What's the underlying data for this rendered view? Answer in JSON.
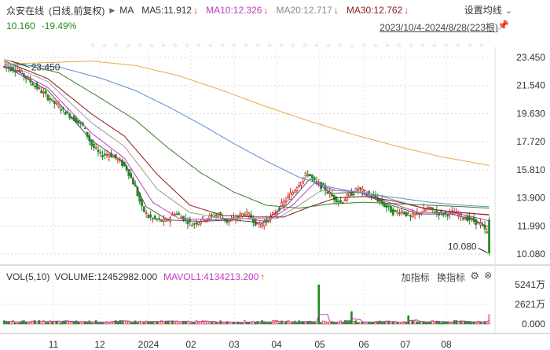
{
  "header": {
    "stock_name": "众安在线",
    "mode": "(日线,前复权)",
    "indicator": "MA",
    "ma5": "MA5:11.912",
    "ma10": "MA10:12.326",
    "ma20": "MA20:12.717",
    "ma30": "MA30:12.762",
    "settings_label": "设置均线",
    "last_price": "10.160",
    "change_pct": "-19.49%",
    "date_range": "2023/10/4-2024/8/28(223根)"
  },
  "volume_panel": {
    "vol_label": "VOL(5,10)",
    "volume_value": "VOLUME:12452982.000",
    "mavol": "MAVOL1:4134213.200",
    "add_indicator": "加指标",
    "switch_indicator": "换指标",
    "y_ticks": [
      "5241万",
      "2621万",
      "0.000"
    ]
  },
  "colors": {
    "up": "#d43030",
    "down": "#1f8a1f",
    "ma5": "#555555",
    "ma10": "#c23ac2",
    "ma20": "#9a9a9a",
    "ma30": "#8b1a1a",
    "ma60": "#3a7a2a",
    "ma120": "#5b8fd0",
    "ma250": "#f0a640"
  },
  "chart_data": {
    "type": "candlestick",
    "y_ticks": [
      "23.450",
      "21.540",
      "19.630",
      "17.720",
      "15.810",
      "13.900",
      "11.990",
      "10.080"
    ],
    "ylim": [
      10.08,
      23.45
    ],
    "x_ticks": [
      "11",
      "12",
      "2024",
      "02",
      "03",
      "04",
      "05",
      "06",
      "07",
      "08"
    ],
    "high_annotation": "23.450",
    "low_annotation": "10.080",
    "grid": true,
    "price_path": [
      [
        0,
        22.8
      ],
      [
        6,
        22.6
      ],
      [
        12,
        21.8
      ],
      [
        18,
        21.0
      ],
      [
        24,
        20.2
      ],
      [
        30,
        19.5
      ],
      [
        36,
        18.8
      ],
      [
        40,
        17.5
      ],
      [
        44,
        16.8
      ],
      [
        48,
        16.9
      ],
      [
        52,
        16.5
      ],
      [
        56,
        15.9
      ],
      [
        60,
        14.6
      ],
      [
        63,
        13.2
      ],
      [
        66,
        12.6
      ],
      [
        70,
        12.4
      ],
      [
        74,
        12.3
      ],
      [
        78,
        12.9
      ],
      [
        82,
        12.5
      ],
      [
        86,
        12.1
      ],
      [
        90,
        12.4
      ],
      [
        94,
        12.6
      ],
      [
        98,
        12.8
      ],
      [
        102,
        12.3
      ],
      [
        106,
        12.5
      ],
      [
        110,
        12.9
      ],
      [
        113,
        12.6
      ],
      [
        116,
        12.0
      ],
      [
        120,
        12.3
      ],
      [
        124,
        12.9
      ],
      [
        128,
        13.6
      ],
      [
        132,
        14.3
      ],
      [
        136,
        15.1
      ],
      [
        139,
        15.6
      ],
      [
        142,
        15.0
      ],
      [
        146,
        14.6
      ],
      [
        150,
        14.0
      ],
      [
        154,
        13.6
      ],
      [
        158,
        14.1
      ],
      [
        162,
        14.5
      ],
      [
        166,
        14.2
      ],
      [
        170,
        13.9
      ],
      [
        174,
        13.4
      ],
      [
        178,
        12.9
      ],
      [
        182,
        13.0
      ],
      [
        186,
        12.6
      ],
      [
        190,
        12.9
      ],
      [
        194,
        13.2
      ],
      [
        198,
        12.9
      ],
      [
        202,
        12.8
      ],
      [
        206,
        12.9
      ],
      [
        210,
        12.6
      ],
      [
        214,
        12.4
      ],
      [
        218,
        12.1
      ],
      [
        221,
        11.5
      ],
      [
        222,
        10.16
      ]
    ],
    "series": [
      {
        "name": "MA5",
        "values": [
          [
            0,
            22.9
          ],
          [
            20,
            21.2
          ],
          [
            40,
            17.8
          ],
          [
            55,
            16.3
          ],
          [
            65,
            13.3
          ],
          [
            75,
            12.4
          ],
          [
            90,
            12.3
          ],
          [
            105,
            12.4
          ],
          [
            118,
            12.2
          ],
          [
            130,
            13.5
          ],
          [
            140,
            15.2
          ],
          [
            150,
            14.2
          ],
          [
            162,
            14.3
          ],
          [
            175,
            13.5
          ],
          [
            190,
            12.8
          ],
          [
            205,
            12.8
          ],
          [
            215,
            12.4
          ],
          [
            222,
            11.91
          ]
        ]
      },
      {
        "name": "MA10",
        "values": [
          [
            0,
            23.0
          ],
          [
            20,
            21.4
          ],
          [
            40,
            18.3
          ],
          [
            55,
            16.6
          ],
          [
            68,
            13.6
          ],
          [
            80,
            12.5
          ],
          [
            95,
            12.4
          ],
          [
            110,
            12.5
          ],
          [
            120,
            12.3
          ],
          [
            132,
            13.4
          ],
          [
            142,
            14.9
          ],
          [
            152,
            14.4
          ],
          [
            163,
            14.3
          ],
          [
            176,
            13.6
          ],
          [
            190,
            12.9
          ],
          [
            205,
            12.9
          ],
          [
            215,
            12.6
          ],
          [
            222,
            12.33
          ]
        ]
      },
      {
        "name": "MA20",
        "values": [
          [
            0,
            23.1
          ],
          [
            20,
            21.8
          ],
          [
            40,
            19.0
          ],
          [
            55,
            17.4
          ],
          [
            70,
            14.5
          ],
          [
            85,
            12.9
          ],
          [
            100,
            12.5
          ],
          [
            115,
            12.5
          ],
          [
            125,
            12.5
          ],
          [
            135,
            13.4
          ],
          [
            145,
            14.4
          ],
          [
            157,
            14.4
          ],
          [
            168,
            14.2
          ],
          [
            180,
            13.7
          ],
          [
            195,
            13.1
          ],
          [
            210,
            12.9
          ],
          [
            222,
            12.72
          ]
        ]
      },
      {
        "name": "MA30",
        "values": [
          [
            0,
            23.2
          ],
          [
            20,
            22.0
          ],
          [
            40,
            19.6
          ],
          [
            55,
            18.1
          ],
          [
            70,
            15.5
          ],
          [
            85,
            13.4
          ],
          [
            100,
            12.7
          ],
          [
            115,
            12.6
          ],
          [
            128,
            12.6
          ],
          [
            140,
            13.3
          ],
          [
            152,
            13.9
          ],
          [
            165,
            14.0
          ],
          [
            178,
            13.7
          ],
          [
            192,
            13.2
          ],
          [
            208,
            12.9
          ],
          [
            222,
            12.76
          ]
        ]
      },
      {
        "name": "MA60",
        "values": [
          [
            0,
            23.3
          ],
          [
            25,
            22.4
          ],
          [
            45,
            20.6
          ],
          [
            60,
            19.2
          ],
          [
            75,
            17.3
          ],
          [
            90,
            15.6
          ],
          [
            105,
            14.3
          ],
          [
            120,
            13.4
          ],
          [
            135,
            13.2
          ],
          [
            150,
            13.5
          ],
          [
            165,
            13.6
          ],
          [
            180,
            13.5
          ],
          [
            195,
            13.4
          ],
          [
            210,
            13.3
          ],
          [
            222,
            13.2
          ]
        ]
      },
      {
        "name": "MA120",
        "values": [
          [
            0,
            23.0
          ],
          [
            25,
            22.8
          ],
          [
            45,
            22.0
          ],
          [
            60,
            21.2
          ],
          [
            75,
            20.1
          ],
          [
            90,
            18.9
          ],
          [
            105,
            17.6
          ],
          [
            120,
            16.4
          ],
          [
            135,
            15.3
          ],
          [
            150,
            14.6
          ],
          [
            165,
            14.2
          ],
          [
            180,
            13.9
          ],
          [
            195,
            13.6
          ],
          [
            210,
            13.4
          ],
          [
            222,
            13.3
          ]
        ]
      },
      {
        "name": "MA250",
        "values": [
          [
            0,
            23.0
          ],
          [
            20,
            23.1
          ],
          [
            40,
            23.2
          ],
          [
            60,
            22.9
          ],
          [
            80,
            22.2
          ],
          [
            100,
            21.2
          ],
          [
            120,
            20.1
          ],
          [
            140,
            19.1
          ],
          [
            160,
            18.2
          ],
          [
            180,
            17.4
          ],
          [
            200,
            16.7
          ],
          [
            222,
            16.1
          ]
        ]
      }
    ],
    "volume": {
      "ylim": [
        0,
        5241
      ],
      "spikes": [
        [
          144,
          5241
        ],
        [
          159,
          1650
        ],
        [
          185,
          1100
        ],
        [
          222,
          1245
        ]
      ],
      "base_level": 320
    }
  }
}
